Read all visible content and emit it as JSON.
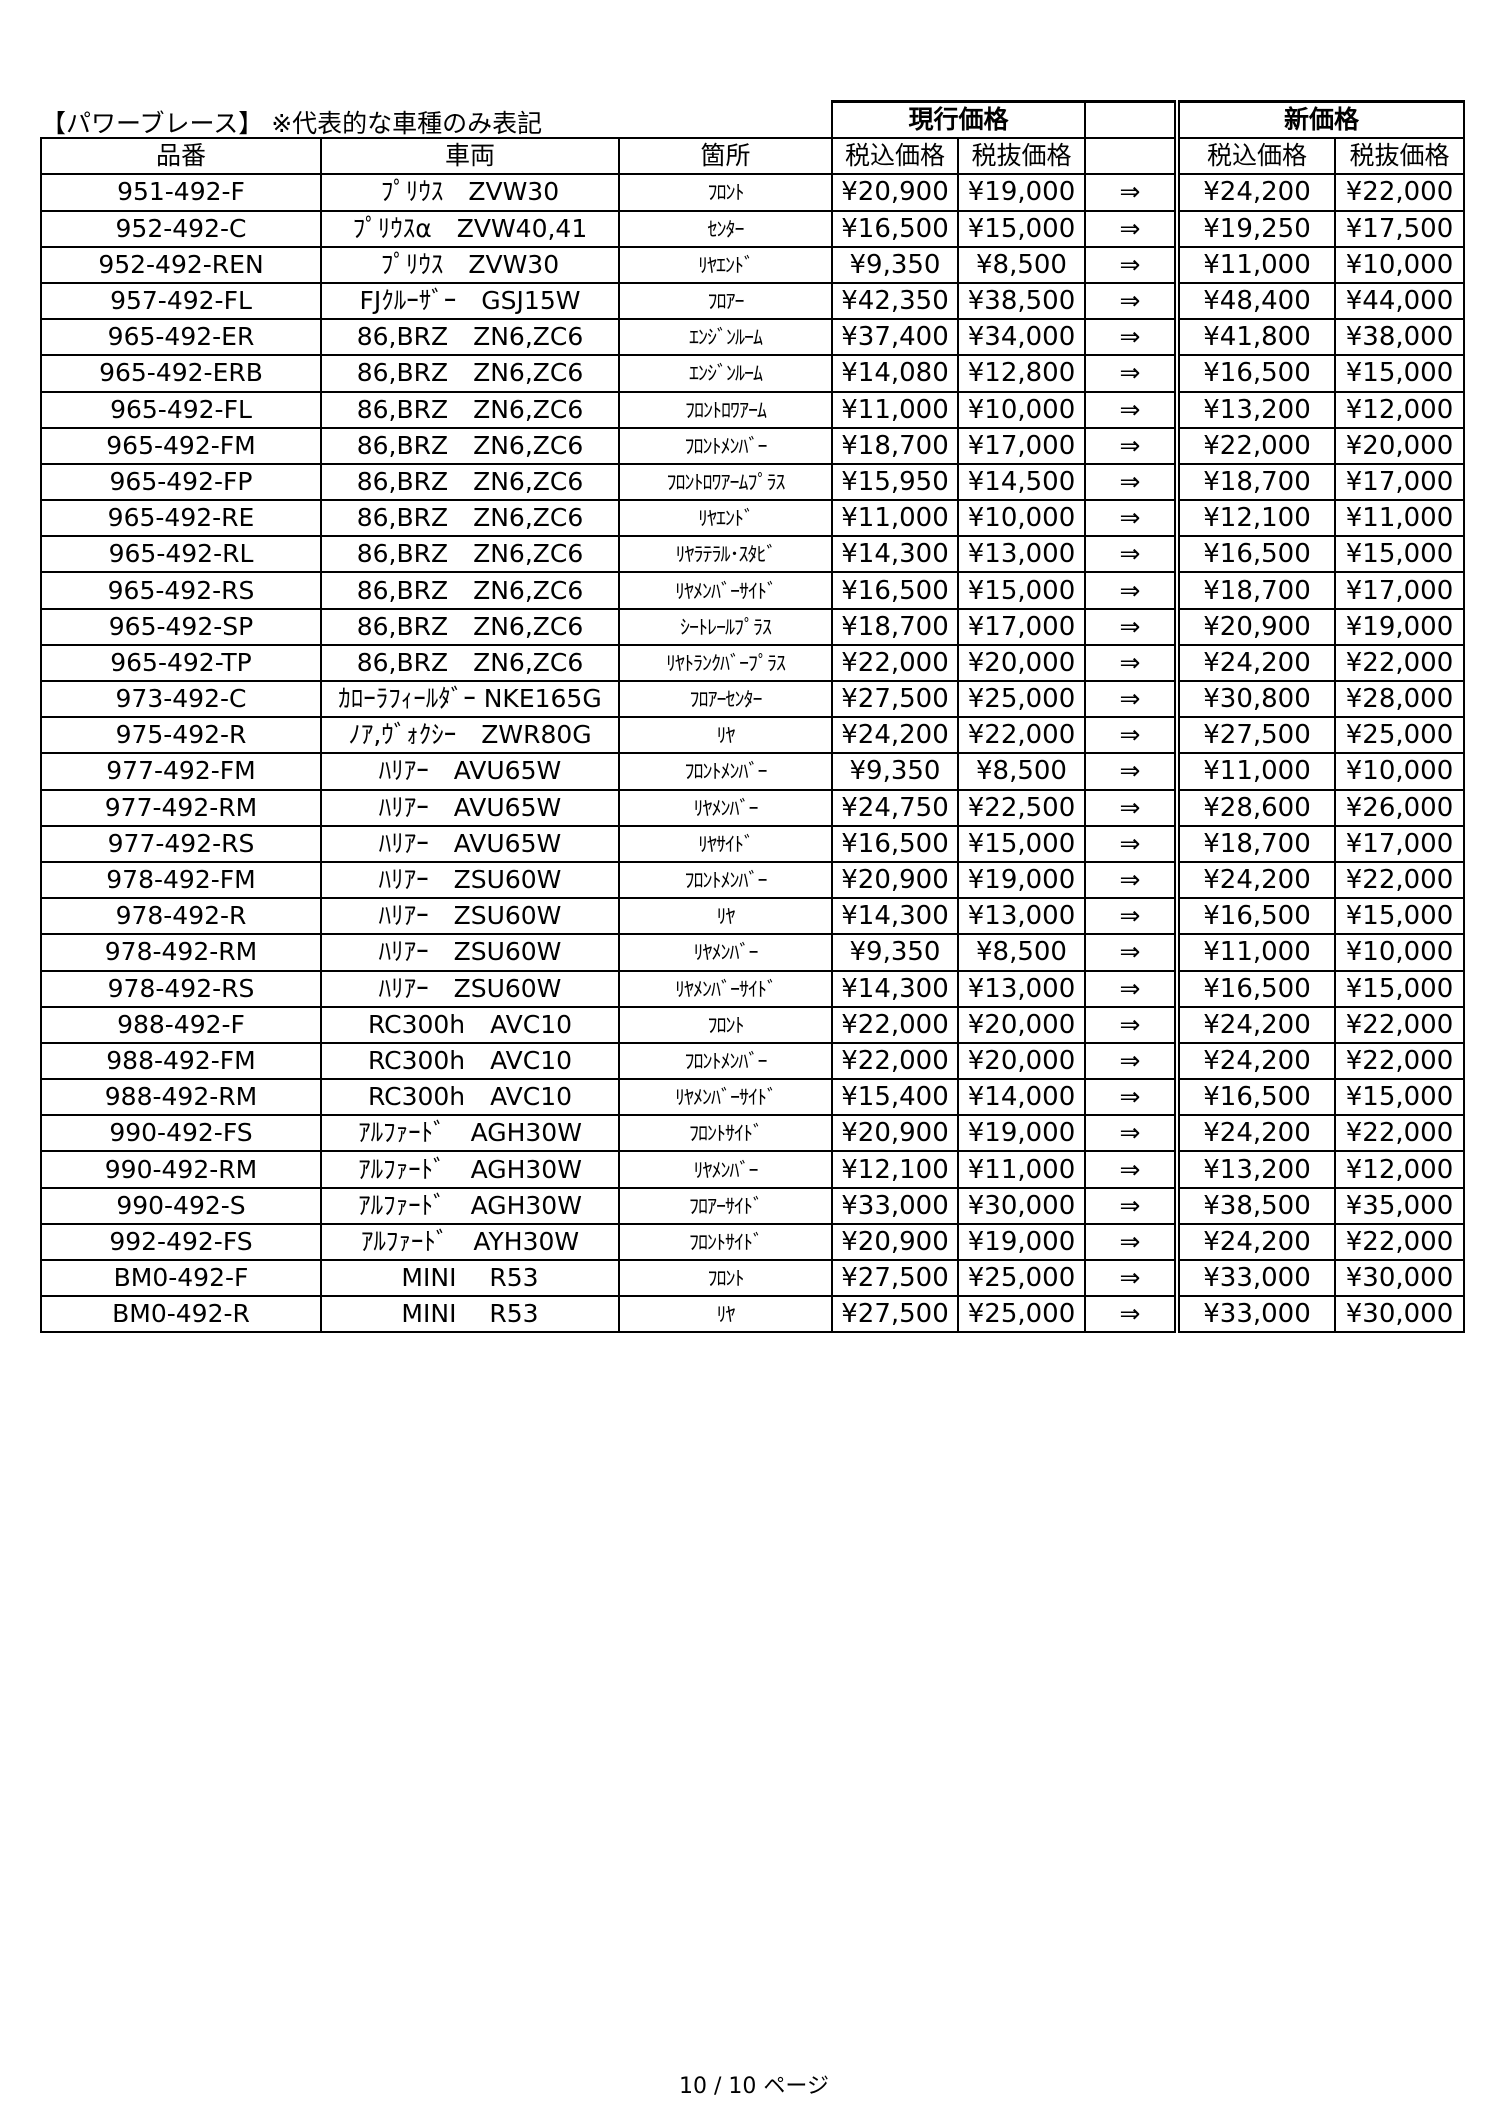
{
  "title": "【パワーブレース】 ※代表的な車種のみ表記",
  "groups": {
    "current": "現行価格",
    "new": "新価格"
  },
  "headers": {
    "part_no": "品番",
    "vehicle": "車両",
    "location": "箇所",
    "tax_in": "税込価格",
    "tax_ex": "税抜価格",
    "new_tax_in": "税込価格",
    "new_tax_ex": "税抜価格"
  },
  "arrow": "⇒",
  "rows": [
    {
      "part_no": "951-492-F",
      "vehicle": "ﾌﾟﾘｳｽ　ZVW30",
      "location": "ﾌﾛﾝﾄ",
      "cur_in": "¥20,900",
      "cur_ex": "¥19,000",
      "new_in": "¥24,200",
      "new_ex": "¥22,000"
    },
    {
      "part_no": "952-492-C",
      "vehicle": "ﾌﾟﾘｳｽα　ZVW40,41",
      "location": "ｾﾝﾀｰ",
      "cur_in": "¥16,500",
      "cur_ex": "¥15,000",
      "new_in": "¥19,250",
      "new_ex": "¥17,500"
    },
    {
      "part_no": "952-492-REN",
      "vehicle": "ﾌﾟﾘｳｽ　ZVW30",
      "location": "ﾘﾔｴﾝﾄﾞ",
      "cur_in": "¥9,350",
      "cur_ex": "¥8,500",
      "new_in": "¥11,000",
      "new_ex": "¥10,000"
    },
    {
      "part_no": "957-492-FL",
      "vehicle": "FJｸﾙｰｻﾞｰ　GSJ15W",
      "location": "ﾌﾛｱｰ",
      "cur_in": "¥42,350",
      "cur_ex": "¥38,500",
      "new_in": "¥48,400",
      "new_ex": "¥44,000"
    },
    {
      "part_no": "965-492-ER",
      "vehicle": "86,BRZ　ZN6,ZC6",
      "location": "ｴﾝｼﾞﾝﾙｰﾑ",
      "cur_in": "¥37,400",
      "cur_ex": "¥34,000",
      "new_in": "¥41,800",
      "new_ex": "¥38,000"
    },
    {
      "part_no": "965-492-ERB",
      "vehicle": "86,BRZ　ZN6,ZC6",
      "location": "ｴﾝｼﾞﾝﾙｰﾑ",
      "cur_in": "¥14,080",
      "cur_ex": "¥12,800",
      "new_in": "¥16,500",
      "new_ex": "¥15,000"
    },
    {
      "part_no": "965-492-FL",
      "vehicle": "86,BRZ　ZN6,ZC6",
      "location": "ﾌﾛﾝﾄﾛﾜｱｰﾑ",
      "cur_in": "¥11,000",
      "cur_ex": "¥10,000",
      "new_in": "¥13,200",
      "new_ex": "¥12,000"
    },
    {
      "part_no": "965-492-FM",
      "vehicle": "86,BRZ　ZN6,ZC6",
      "location": "ﾌﾛﾝﾄﾒﾝﾊﾞｰ",
      "cur_in": "¥18,700",
      "cur_ex": "¥17,000",
      "new_in": "¥22,000",
      "new_ex": "¥20,000"
    },
    {
      "part_no": "965-492-FP",
      "vehicle": "86,BRZ　ZN6,ZC6",
      "location": "ﾌﾛﾝﾄﾛﾜｱｰﾑﾌﾟﾗｽ",
      "cur_in": "¥15,950",
      "cur_ex": "¥14,500",
      "new_in": "¥18,700",
      "new_ex": "¥17,000"
    },
    {
      "part_no": "965-492-RE",
      "vehicle": "86,BRZ　ZN6,ZC6",
      "location": "ﾘﾔｴﾝﾄﾞ",
      "cur_in": "¥11,000",
      "cur_ex": "¥10,000",
      "new_in": "¥12,100",
      "new_ex": "¥11,000"
    },
    {
      "part_no": "965-492-RL",
      "vehicle": "86,BRZ　ZN6,ZC6",
      "location": "ﾘﾔﾗﾃﾗﾙ･ｽﾀﾋﾞ",
      "cur_in": "¥14,300",
      "cur_ex": "¥13,000",
      "new_in": "¥16,500",
      "new_ex": "¥15,000"
    },
    {
      "part_no": "965-492-RS",
      "vehicle": "86,BRZ　ZN6,ZC6",
      "location": "ﾘﾔﾒﾝﾊﾞｰｻｲﾄﾞ",
      "cur_in": "¥16,500",
      "cur_ex": "¥15,000",
      "new_in": "¥18,700",
      "new_ex": "¥17,000"
    },
    {
      "part_no": "965-492-SP",
      "vehicle": "86,BRZ　ZN6,ZC6",
      "location": "ｼｰﾄﾚｰﾙﾌﾟﾗｽ",
      "cur_in": "¥18,700",
      "cur_ex": "¥17,000",
      "new_in": "¥20,900",
      "new_ex": "¥19,000"
    },
    {
      "part_no": "965-492-TP",
      "vehicle": "86,BRZ　ZN6,ZC6",
      "location": "ﾘﾔﾄﾗﾝｸﾊﾞｰﾌﾟﾗｽ",
      "cur_in": "¥22,000",
      "cur_ex": "¥20,000",
      "new_in": "¥24,200",
      "new_ex": "¥22,000"
    },
    {
      "part_no": "973-492-C",
      "vehicle": "ｶﾛｰﾗﾌｨｰﾙﾀﾞｰ NKE165G",
      "location": "ﾌﾛｱｰｾﾝﾀｰ",
      "cur_in": "¥27,500",
      "cur_ex": "¥25,000",
      "new_in": "¥30,800",
      "new_ex": "¥28,000"
    },
    {
      "part_no": "975-492-R",
      "vehicle": "ﾉｱ,ｳﾞｫｸｼｰ　ZWR80G",
      "location": "ﾘﾔ",
      "cur_in": "¥24,200",
      "cur_ex": "¥22,000",
      "new_in": "¥27,500",
      "new_ex": "¥25,000"
    },
    {
      "part_no": "977-492-FM",
      "vehicle": "ﾊﾘｱｰ　AVU65W",
      "location": "ﾌﾛﾝﾄﾒﾝﾊﾞｰ",
      "cur_in": "¥9,350",
      "cur_ex": "¥8,500",
      "new_in": "¥11,000",
      "new_ex": "¥10,000"
    },
    {
      "part_no": "977-492-RM",
      "vehicle": "ﾊﾘｱｰ　AVU65W",
      "location": "ﾘﾔﾒﾝﾊﾞｰ",
      "cur_in": "¥24,750",
      "cur_ex": "¥22,500",
      "new_in": "¥28,600",
      "new_ex": "¥26,000"
    },
    {
      "part_no": "977-492-RS",
      "vehicle": "ﾊﾘｱｰ　AVU65W",
      "location": "ﾘﾔｻｲﾄﾞ",
      "cur_in": "¥16,500",
      "cur_ex": "¥15,000",
      "new_in": "¥18,700",
      "new_ex": "¥17,000"
    },
    {
      "part_no": "978-492-FM",
      "vehicle": "ﾊﾘｱｰ　ZSU60W",
      "location": "ﾌﾛﾝﾄﾒﾝﾊﾞｰ",
      "cur_in": "¥20,900",
      "cur_ex": "¥19,000",
      "new_in": "¥24,200",
      "new_ex": "¥22,000"
    },
    {
      "part_no": "978-492-R",
      "vehicle": "ﾊﾘｱｰ　ZSU60W",
      "location": "ﾘﾔ",
      "cur_in": "¥14,300",
      "cur_ex": "¥13,000",
      "new_in": "¥16,500",
      "new_ex": "¥15,000"
    },
    {
      "part_no": "978-492-RM",
      "vehicle": "ﾊﾘｱｰ　ZSU60W",
      "location": "ﾘﾔﾒﾝﾊﾞｰ",
      "cur_in": "¥9,350",
      "cur_ex": "¥8,500",
      "new_in": "¥11,000",
      "new_ex": "¥10,000"
    },
    {
      "part_no": "978-492-RS",
      "vehicle": "ﾊﾘｱｰ　ZSU60W",
      "location": "ﾘﾔﾒﾝﾊﾞｰｻｲﾄﾞ",
      "cur_in": "¥14,300",
      "cur_ex": "¥13,000",
      "new_in": "¥16,500",
      "new_ex": "¥15,000"
    },
    {
      "part_no": "988-492-F",
      "vehicle": "RC300h　AVC10",
      "location": "ﾌﾛﾝﾄ",
      "cur_in": "¥22,000",
      "cur_ex": "¥20,000",
      "new_in": "¥24,200",
      "new_ex": "¥22,000"
    },
    {
      "part_no": "988-492-FM",
      "vehicle": "RC300h　AVC10",
      "location": "ﾌﾛﾝﾄﾒﾝﾊﾞｰ",
      "cur_in": "¥22,000",
      "cur_ex": "¥20,000",
      "new_in": "¥24,200",
      "new_ex": "¥22,000"
    },
    {
      "part_no": "988-492-RM",
      "vehicle": "RC300h　AVC10",
      "location": "ﾘﾔﾒﾝﾊﾞｰｻｲﾄﾞ",
      "cur_in": "¥15,400",
      "cur_ex": "¥14,000",
      "new_in": "¥16,500",
      "new_ex": "¥15,000"
    },
    {
      "part_no": "990-492-FS",
      "vehicle": "ｱﾙﾌｧｰﾄﾞ　AGH30W",
      "location": "ﾌﾛﾝﾄｻｲﾄﾞ",
      "cur_in": "¥20,900",
      "cur_ex": "¥19,000",
      "new_in": "¥24,200",
      "new_ex": "¥22,000"
    },
    {
      "part_no": "990-492-RM",
      "vehicle": "ｱﾙﾌｧｰﾄﾞ　AGH30W",
      "location": "ﾘﾔﾒﾝﾊﾞｰ",
      "cur_in": "¥12,100",
      "cur_ex": "¥11,000",
      "new_in": "¥13,200",
      "new_ex": "¥12,000"
    },
    {
      "part_no": "990-492-S",
      "vehicle": "ｱﾙﾌｧｰﾄﾞ　AGH30W",
      "location": "ﾌﾛｱｰｻｲﾄﾞ",
      "cur_in": "¥33,000",
      "cur_ex": "¥30,000",
      "new_in": "¥38,500",
      "new_ex": "¥35,000"
    },
    {
      "part_no": "992-492-FS",
      "vehicle": "ｱﾙﾌｧｰﾄﾞ　AYH30W",
      "location": "ﾌﾛﾝﾄｻｲﾄﾞ",
      "cur_in": "¥20,900",
      "cur_ex": "¥19,000",
      "new_in": "¥24,200",
      "new_ex": "¥22,000"
    },
    {
      "part_no": "BM0-492-F",
      "vehicle": "MINI　 R53",
      "location": "ﾌﾛﾝﾄ",
      "cur_in": "¥27,500",
      "cur_ex": "¥25,000",
      "new_in": "¥33,000",
      "new_ex": "¥30,000"
    },
    {
      "part_no": "BM0-492-R",
      "vehicle": "MINI　 R53",
      "location": "ﾘﾔ",
      "cur_in": "¥27,500",
      "cur_ex": "¥25,000",
      "new_in": "¥33,000",
      "new_ex": "¥30,000"
    }
  ],
  "footer": "10 / 10 ページ"
}
